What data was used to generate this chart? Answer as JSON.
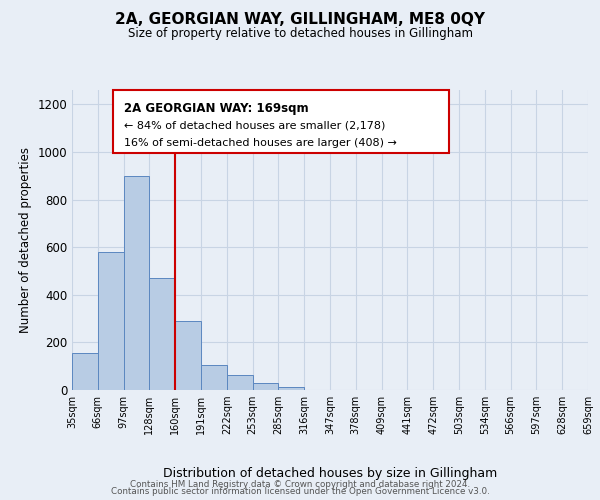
{
  "title": "2A, GEORGIAN WAY, GILLINGHAM, ME8 0QY",
  "subtitle": "Size of property relative to detached houses in Gillingham",
  "xlabel": "Distribution of detached houses by size in Gillingham",
  "ylabel": "Number of detached properties",
  "footer_lines": [
    "Contains HM Land Registry data © Crown copyright and database right 2024.",
    "Contains public sector information licensed under the Open Government Licence v3.0."
  ],
  "bin_labels": [
    "35sqm",
    "66sqm",
    "97sqm",
    "128sqm",
    "160sqm",
    "191sqm",
    "222sqm",
    "253sqm",
    "285sqm",
    "316sqm",
    "347sqm",
    "378sqm",
    "409sqm",
    "441sqm",
    "472sqm",
    "503sqm",
    "534sqm",
    "566sqm",
    "597sqm",
    "628sqm",
    "659sqm"
  ],
  "bar_values": [
    155,
    580,
    900,
    470,
    290,
    105,
    65,
    28,
    12,
    0,
    0,
    0,
    0,
    0,
    0,
    0,
    0,
    0,
    0,
    0
  ],
  "bar_color": "#b8cce4",
  "bar_edge_color": "#5b87c0",
  "grid_color": "#c8d4e4",
  "background_color": "#e8eef6",
  "vline_x": 4.0,
  "vline_color": "#cc0000",
  "annotation_box": {
    "title_line": "2A GEORGIAN WAY: 169sqm",
    "line2": "← 84% of detached houses are smaller (2,178)",
    "line3": "16% of semi-detached houses are larger (408) →",
    "box_color": "#ffffff",
    "border_color": "#cc0000"
  },
  "ylim": [
    0,
    1260
  ],
  "yticks": [
    0,
    200,
    400,
    600,
    800,
    1000,
    1200
  ],
  "n_bins": 20
}
